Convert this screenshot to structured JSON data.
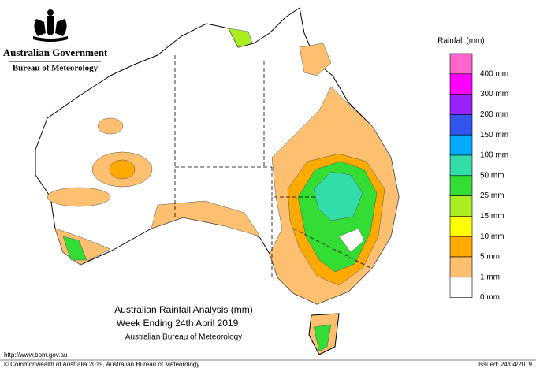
{
  "header": {
    "government": "Australian Government",
    "agency": "Bureau of Meteorology"
  },
  "legend": {
    "title": "Rainfall (mm)",
    "items": [
      {
        "label": "400 mm",
        "color": "#ff66cc"
      },
      {
        "label": "300 mm",
        "color": "#ff00ff"
      },
      {
        "label": "200 mm",
        "color": "#9922ff"
      },
      {
        "label": "150 mm",
        "color": "#3355ee"
      },
      {
        "label": "100 mm",
        "color": "#00aaff"
      },
      {
        "label": "50 mm",
        "color": "#33ddaa"
      },
      {
        "label": "25 mm",
        "color": "#33dd33"
      },
      {
        "label": "15 mm",
        "color": "#aaee22"
      },
      {
        "label": "10 mm",
        "color": "#ffff00"
      },
      {
        "label": "5 mm",
        "color": "#ffaa00"
      },
      {
        "label": "1 mm",
        "color": "#fcc070"
      },
      {
        "label": "0 mm",
        "color": "#ffffff"
      }
    ]
  },
  "title": {
    "line1": "Australian Rainfall Analysis (mm)",
    "line2": "Week Ending 24th April 2019",
    "line3": "Australian Bureau of Meteorology"
  },
  "footer": {
    "url": "http://www.bom.gov.au",
    "copyright": "© Commonwealth of Australia 2019, Australian Bureau of Meteorology",
    "issued": "Issued: 24/04/2019"
  }
}
